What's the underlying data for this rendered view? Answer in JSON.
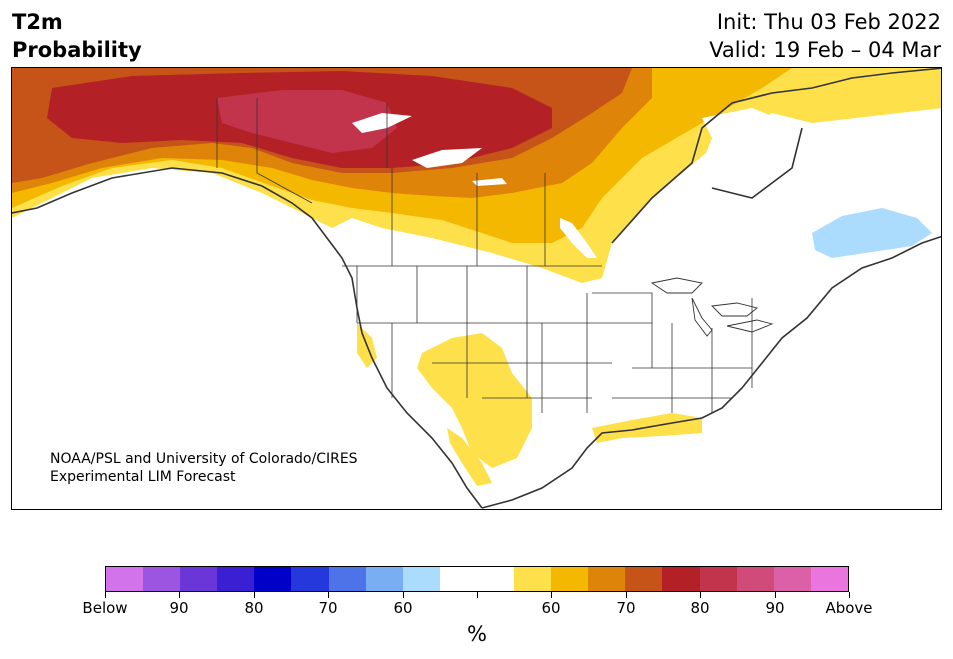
{
  "title": {
    "line1": "T2m",
    "line2": "Probability"
  },
  "dates": {
    "init": "Init: Thu 03 Feb 2022",
    "valid": "Valid: 19 Feb – 04 Mar"
  },
  "credit": {
    "line1": "NOAA/PSL and University of Colorado/CIRES",
    "line2": "Experimental LIM Forecast"
  },
  "colors": {
    "below": [
      "#d373eb",
      "#9b55e0",
      "#6b36d8",
      "#3a1fd3",
      "#0000c8",
      "#2538db",
      "#4e73e8",
      "#79aef2",
      "#acdcfd"
    ],
    "neutral": "#ffffff",
    "above": [
      "#fee04a",
      "#f4b800",
      "#de8509",
      "#c65317",
      "#b32126",
      "#c2344c",
      "#d04b7a",
      "#db60a8",
      "#ea75de"
    ]
  },
  "colorbar": {
    "labels": [
      "Below",
      "90",
      "80",
      "70",
      "60",
      "",
      "60",
      "70",
      "80",
      "90",
      "Above"
    ],
    "unit": "%"
  }
}
